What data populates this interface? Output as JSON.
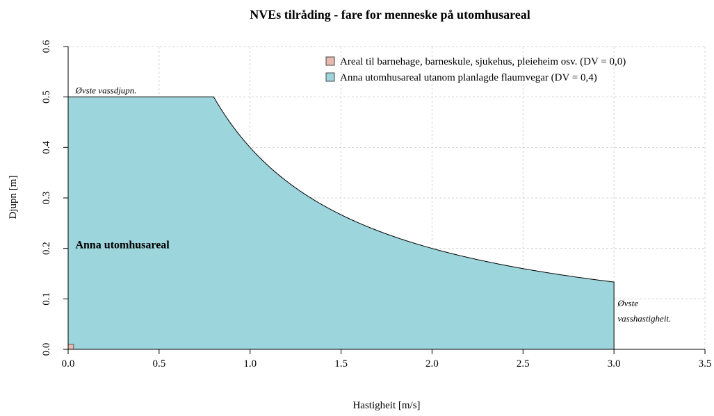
{
  "chart_data": {
    "type": "area",
    "title": "NVEs tilråding - fare for menneske på utomhusareal",
    "xlabel": "Hastigheit [m/s]",
    "ylabel": "Djupn [m]",
    "xlim": [
      0,
      3.5
    ],
    "ylim": [
      0,
      0.6
    ],
    "x_ticks": [
      "0.0",
      "0.5",
      "1.0",
      "1.5",
      "2.0",
      "2.5",
      "3.0",
      "3.5"
    ],
    "y_ticks": [
      "0.0",
      "0.1",
      "0.2",
      "0.3",
      "0.4",
      "0.5",
      "0.6"
    ],
    "grid": true,
    "legend_position": "top-right",
    "series": [
      {
        "name": "Areal til barnehage, barneskule, sjukehus, pleieheim osv. (DV = 0,0)",
        "color": "#e8b9b0",
        "edge_color": "#5a5a5a",
        "shape": "rectangle",
        "x_range": [
          0,
          0.03
        ],
        "y_range": [
          0,
          0.01
        ]
      },
      {
        "name": "Anna utomhusareal utanom planlagde flaumvegar (DV = 0,4)",
        "color": "#9cd5dc",
        "edge_color": "#000000",
        "shape": "depth-velocity curve: depth = min(0.5, 0.4 / velocity), 0 ≤ velocity ≤ 3.0",
        "points": [
          {
            "x": 0.0,
            "y": 0.5
          },
          {
            "x": 0.8,
            "y": 0.5
          },
          {
            "x": 1.0,
            "y": 0.4
          },
          {
            "x": 1.5,
            "y": 0.2667
          },
          {
            "x": 2.0,
            "y": 0.2
          },
          {
            "x": 2.5,
            "y": 0.16
          },
          {
            "x": 3.0,
            "y": 0.1333
          }
        ]
      }
    ],
    "annotations": [
      {
        "text": "Øvste vassdjupn.",
        "x": 0.04,
        "y": 0.5,
        "style": "italic"
      },
      {
        "text": "Øvste",
        "x": 3.02,
        "y": 0.085,
        "style": "italic"
      },
      {
        "text": "vasshastigheit.",
        "x": 3.02,
        "y": 0.055,
        "style": "italic"
      },
      {
        "text": "Anna utomhusareal",
        "x": 0.04,
        "y": 0.2,
        "style": "bold"
      }
    ]
  }
}
